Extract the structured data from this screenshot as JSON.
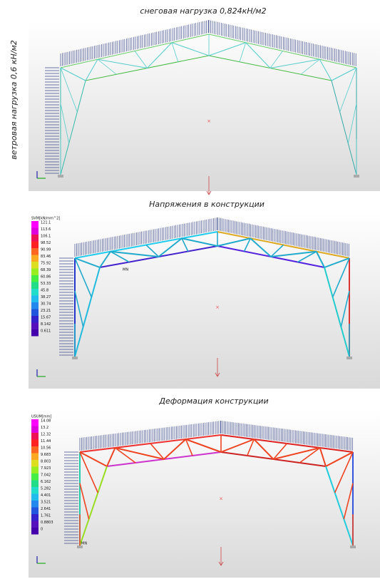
{
  "panels": [
    {
      "title": "снеговая нагрузка 0,824кН/м2",
      "side_label": "ветровая нагрузка 0,6 кН/м2"
    },
    {
      "title": "Напряжения в конструкции",
      "legend_title": "SVM[kN/mm^2]",
      "marker": "MN",
      "legend": [
        "121.1",
        "113.6",
        "106.1",
        "98.52",
        "90.99",
        "83.46",
        "75.92",
        "68.39",
        "60.86",
        "53.33",
        "45.8",
        "38.27",
        "30.74",
        "23.21",
        "15.67",
        "8.142",
        "0.611"
      ]
    },
    {
      "title": "Деформация конструкции",
      "legend_title": "USUM[mm]",
      "marker": "MN",
      "legend": [
        "14.08",
        "13.2",
        "12.32",
        "11.44",
        "10.56",
        "9.683",
        "8.803",
        "7.923",
        "7.042",
        "6.162",
        "5.282",
        "4.401",
        "3.521",
        "2.641",
        "1.761",
        "0.8803",
        "0"
      ]
    }
  ]
}
